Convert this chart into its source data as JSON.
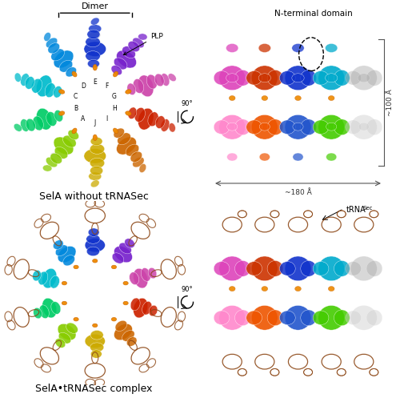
{
  "title_top": "SelA without tRNASec",
  "title_bottom": "SelA•tRNASec complex",
  "label_dimer": "Dimer",
  "label_plp": "PLP",
  "label_nterminal": "N-terminal domain",
  "label_trna_main": "tRNA",
  "label_trna_sup": "Sec",
  "label_180A": "~180 Å",
  "label_100A": "~100 Å",
  "subunit_labels": [
    "A",
    "B",
    "C",
    "D",
    "E",
    "F",
    "G",
    "H",
    "I",
    "J"
  ],
  "bg_color": "#ffffff",
  "text_color": "#000000",
  "trna_color": "#8B4513",
  "font_size_title": 9,
  "font_size_label": 7,
  "font_size_sublabel": 6,
  "rainbow_colors": [
    "#2200aa",
    "#3333dd",
    "#0055ff",
    "#0088ff",
    "#00aacc",
    "#00cc88",
    "#44cc00",
    "#88cc00",
    "#ccaa00",
    "#cc7700",
    "#cc4400",
    "#bb2200",
    "#aa4422",
    "#886644",
    "#aaaaaa",
    "#cc88cc",
    "#aa44cc",
    "#7722bb"
  ],
  "orange_plp": "#ee8800",
  "gray_color": "#bbbbbb",
  "pink_color": "#ff88aa",
  "salmon_color": "#ff9988"
}
